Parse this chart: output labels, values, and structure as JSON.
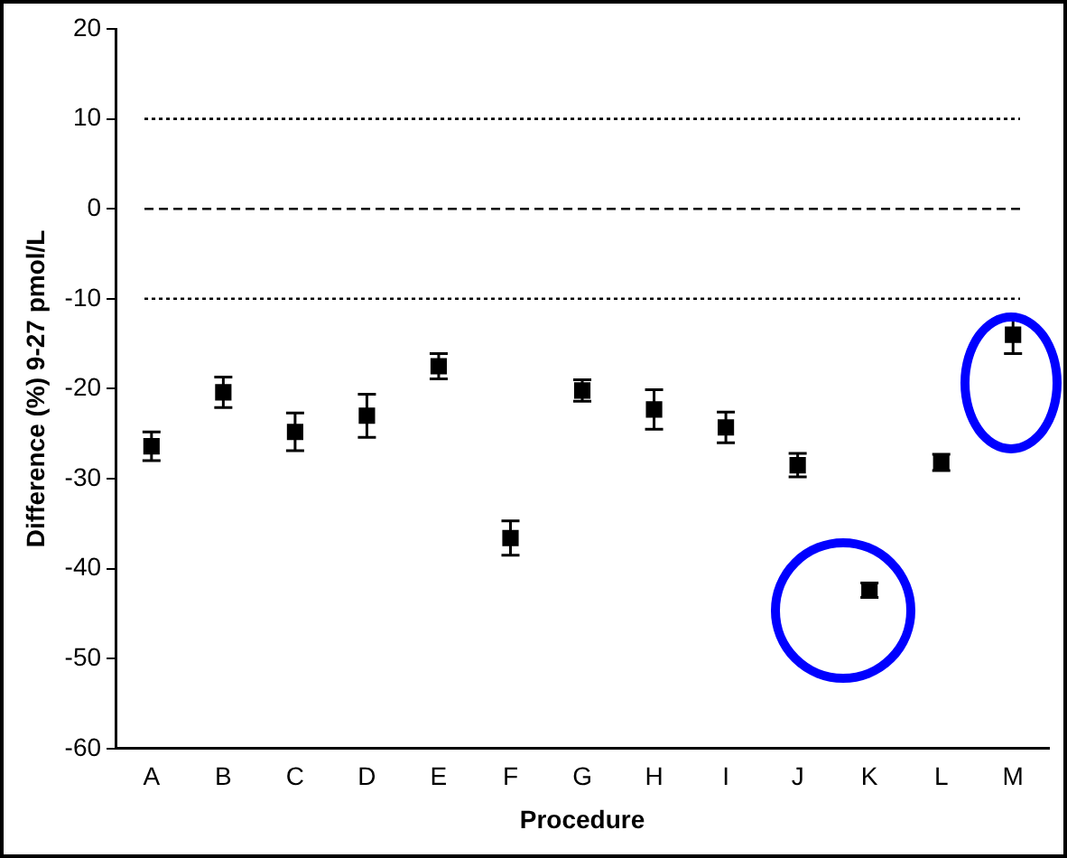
{
  "chart_data": {
    "type": "scatter",
    "xlabel": "Procedure",
    "ylabel": "Difference (%) 9-27 pmol/L",
    "categories": [
      "A",
      "B",
      "C",
      "D",
      "E",
      "F",
      "G",
      "H",
      "I",
      "J",
      "K",
      "L",
      "M"
    ],
    "series": [
      {
        "color": "#000000",
        "values": [
          -26.4,
          -20.4,
          -24.8,
          -23,
          -17.5,
          -36.6,
          -20.2,
          -22.3,
          -24.3,
          -28.5,
          -42.4,
          -28.2,
          -14
        ],
        "errors": [
          1.6,
          1.7,
          2.1,
          2.4,
          1.4,
          1.9,
          1.2,
          2.2,
          1.7,
          1.3,
          0.8,
          0.9,
          2.1
        ]
      }
    ],
    "ylim": [
      -60,
      20
    ],
    "yticks": [
      -60,
      -50,
      -40,
      -30,
      -20,
      -10,
      0,
      10,
      20
    ],
    "grid": false,
    "legend": false,
    "marker": "square",
    "ref_lines": [
      {
        "axis": "y",
        "value": 10,
        "line_style": "dotted",
        "color": "#000000"
      },
      {
        "axis": "y",
        "value": 0,
        "line_style": "dashed",
        "color": "#000000"
      },
      {
        "axis": "y",
        "value": -10,
        "line_style": "dotted",
        "color": "#000000"
      }
    ]
  }
}
